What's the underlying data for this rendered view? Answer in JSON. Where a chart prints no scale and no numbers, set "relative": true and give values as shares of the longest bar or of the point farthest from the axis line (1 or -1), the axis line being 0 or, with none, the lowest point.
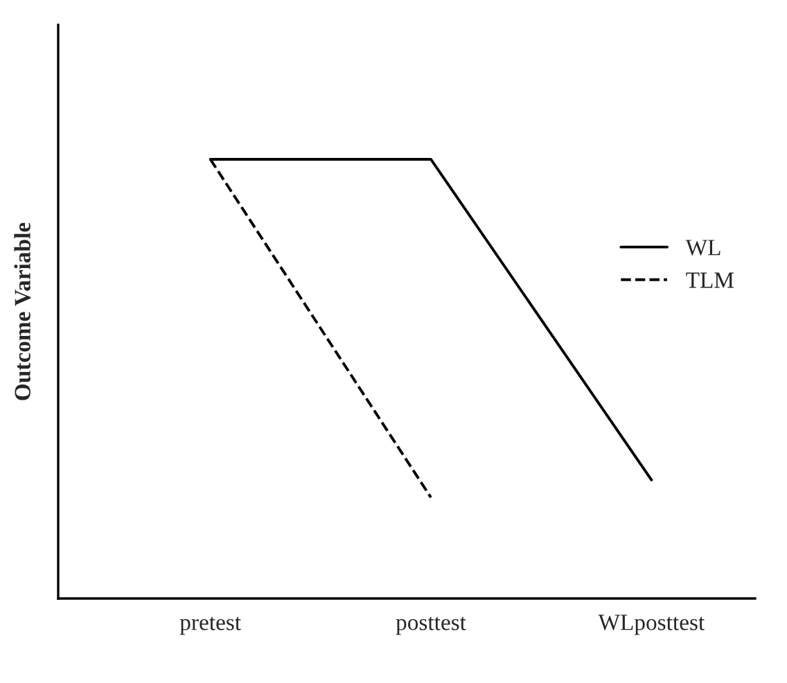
{
  "chart_data": {
    "type": "line",
    "relative": true,
    "ylabel": "Outcome Variable",
    "categories": [
      "pretest",
      "posttest",
      "WLposttest"
    ],
    "series": [
      {
        "name": "WL",
        "color": "#000000",
        "values": [
          1,
          1,
          0.27
        ],
        "line_style": "solid"
      },
      {
        "name": "TLM",
        "color": "#000000",
        "values": [
          1,
          0.23,
          null
        ],
        "line_style": "dashed"
      }
    ],
    "legend": "right",
    "grid": false,
    "marker": "none"
  }
}
